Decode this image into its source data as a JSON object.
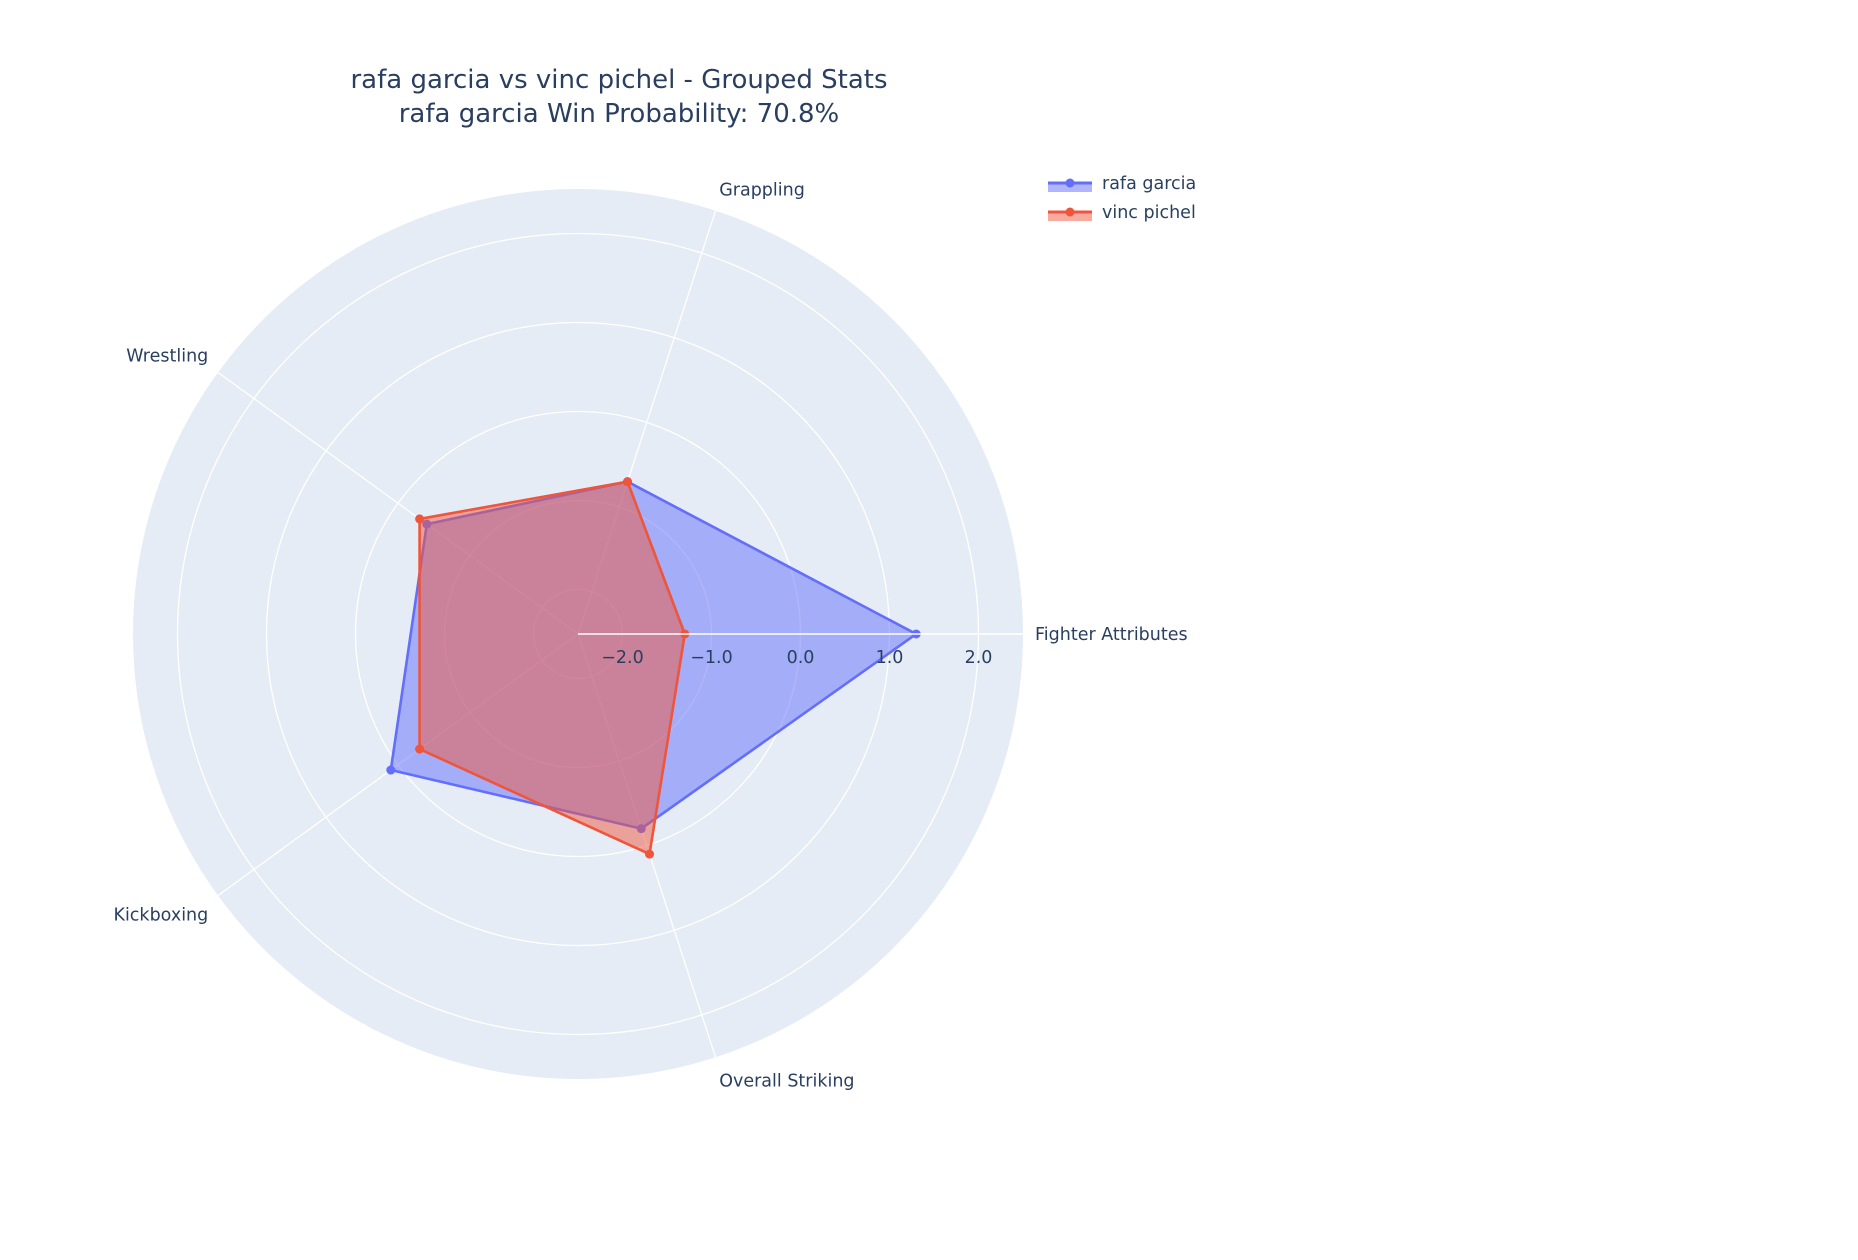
{
  "chart_data": {
    "type": "radar",
    "title": "rafa garcia vs vinc pichel - Grouped Stats",
    "subtitle": "rafa garcia Win Probability: 70.8%",
    "categories": [
      "Fighter Attributes",
      "Overall Striking",
      "Kickboxing",
      "Wrestling",
      "Grappling"
    ],
    "series": [
      {
        "name": "rafa garcia",
        "color": "#636efa",
        "values": [
          1.3,
          -0.2,
          0.1,
          -0.4,
          -0.7
        ]
      },
      {
        "name": "vinc pichel",
        "color": "#ef553b",
        "values": [
          -1.3,
          0.1,
          -0.3,
          -0.3,
          -0.7
        ]
      }
    ],
    "radial_ticks": [
      "−2.0",
      "−1.0",
      "0.0",
      "1.0",
      "2.0"
    ],
    "radial_tick_values": [
      -2,
      -1,
      0,
      1,
      2
    ],
    "radial_range": [
      -2.5,
      2.5
    ],
    "grid": true,
    "legend_position": "top-right"
  }
}
